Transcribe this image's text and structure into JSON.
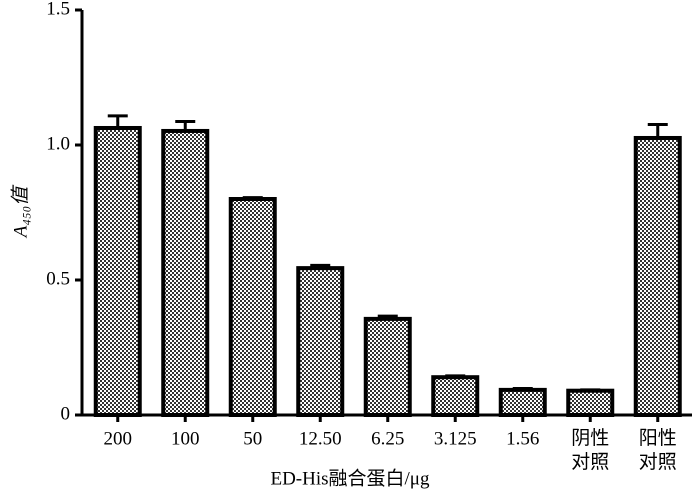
{
  "chart_data": {
    "type": "bar",
    "x_label": "ED-His融合蛋白/μg",
    "y_label": "A₄₅₀值",
    "categories": [
      "200",
      "100",
      "50",
      "12.50",
      "6.25",
      "3.125",
      "1.56",
      "阴性对照",
      "阳性对照"
    ],
    "values": [
      1.063,
      1.052,
      0.8,
      0.544,
      0.356,
      0.14,
      0.093,
      0.09,
      1.026
    ],
    "errors": [
      0.045,
      0.035,
      0.005,
      0.01,
      0.01,
      0.005,
      0.005,
      0.003,
      0.05
    ],
    "color": "#000000",
    "ylim": [
      0,
      1.5
    ],
    "yticks": [
      0,
      0.5,
      {
        "value": 1,
        "label": "1.0"
      },
      1.5
    ]
  }
}
